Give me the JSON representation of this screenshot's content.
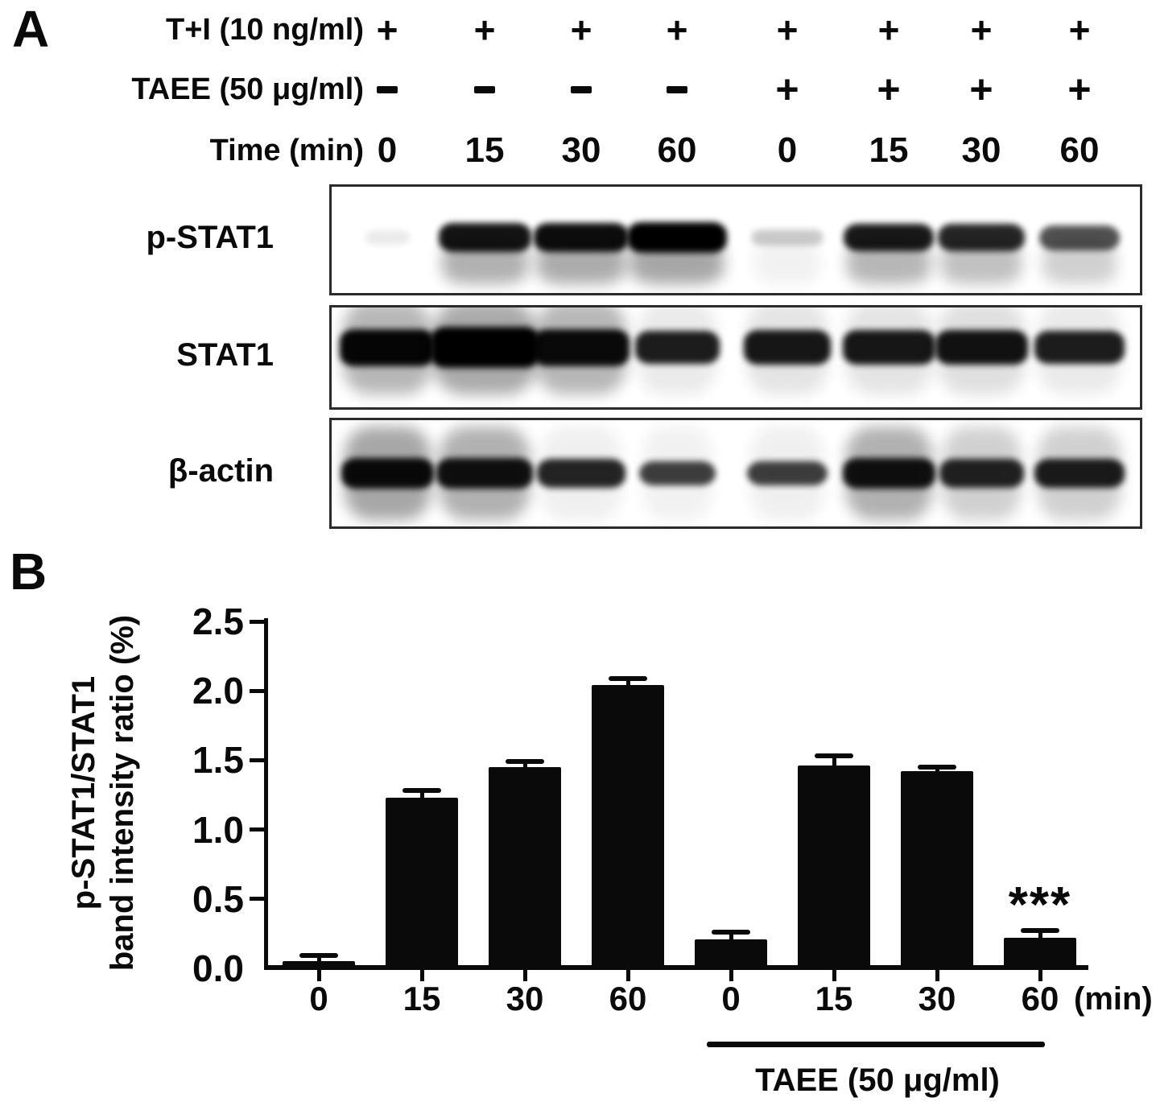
{
  "panelA": {
    "label": "A",
    "conditions": [
      {
        "label": "T+I (10 ng/ml)",
        "values": [
          "+",
          "+",
          "+",
          "+",
          "+",
          "+",
          "+",
          "+"
        ]
      },
      {
        "label": "TAEE (50 μg/ml)",
        "values": [
          "-",
          "-",
          "-",
          "-",
          "+",
          "+",
          "+",
          "+"
        ]
      },
      {
        "label": "Time (min)",
        "values": [
          "0",
          "15",
          "30",
          "60",
          "0",
          "15",
          "30",
          "60"
        ]
      }
    ],
    "blots": [
      {
        "label": "p-STAT1",
        "band_intensities": [
          0.08,
          0.92,
          0.95,
          1.0,
          0.2,
          0.9,
          0.85,
          0.68
        ],
        "band_widths": [
          55,
          115,
          118,
          124,
          90,
          112,
          108,
          100
        ],
        "band_height_scale": [
          0.5,
          1.0,
          1.0,
          1.05,
          0.55,
          0.95,
          0.95,
          0.85
        ],
        "smear_opacities": [
          0,
          0.3,
          0.32,
          0.34,
          0.05,
          0.28,
          0.24,
          0.18
        ],
        "smear_dir": "below"
      },
      {
        "label": "STAT1",
        "band_intensities": [
          0.97,
          1.0,
          0.95,
          0.88,
          0.9,
          0.9,
          0.92,
          0.88
        ],
        "band_widths": [
          118,
          135,
          120,
          105,
          108,
          115,
          115,
          112
        ],
        "band_height_scale": [
          1.0,
          1.1,
          1.0,
          0.9,
          0.95,
          0.95,
          0.95,
          0.9
        ],
        "smear_opacities": [
          0.28,
          0.33,
          0.28,
          0.08,
          0.1,
          0.1,
          0.12,
          0.08
        ],
        "smear_dir": "both"
      },
      {
        "label": "β-actin",
        "band_intensities": [
          0.95,
          0.92,
          0.85,
          0.75,
          0.75,
          0.92,
          0.85,
          0.88
        ],
        "band_widths": [
          115,
          120,
          110,
          95,
          100,
          115,
          105,
          112
        ],
        "band_height_scale": [
          1.0,
          1.0,
          0.95,
          0.8,
          0.8,
          1.0,
          0.95,
          0.95
        ],
        "smear_opacities": [
          0.34,
          0.3,
          0.06,
          0.05,
          0.06,
          0.3,
          0.18,
          0.18
        ],
        "smear_dir": "full"
      }
    ]
  },
  "panelB": {
    "label": "B"
  },
  "chart_data": {
    "type": "bar",
    "title": "",
    "categories": [
      "0",
      "15",
      "30",
      "60",
      "0",
      "15",
      "30",
      "60"
    ],
    "values": [
      0.05,
      1.23,
      1.45,
      2.04,
      0.21,
      1.46,
      1.42,
      0.22
    ],
    "errors": [
      0.04,
      0.05,
      0.04,
      0.05,
      0.05,
      0.07,
      0.03,
      0.05
    ],
    "ylabel_line1": "p-STAT1/STAT1",
    "ylabel_line2": "band intensity ratio (%)",
    "x_unit_label": "(min)",
    "ylim": [
      0,
      2.5
    ],
    "yticks": [
      "0.0",
      "0.5",
      "1.0",
      "1.5",
      "2.0",
      "2.5"
    ],
    "bar_color": "#0a0a0a",
    "grid": false,
    "legend": "none",
    "annotations": [
      {
        "text": "***",
        "bar_index": 7
      }
    ],
    "group_annotation": {
      "text": "TAEE (50 μg/ml)",
      "from_index": 4,
      "to_index": 7
    }
  }
}
